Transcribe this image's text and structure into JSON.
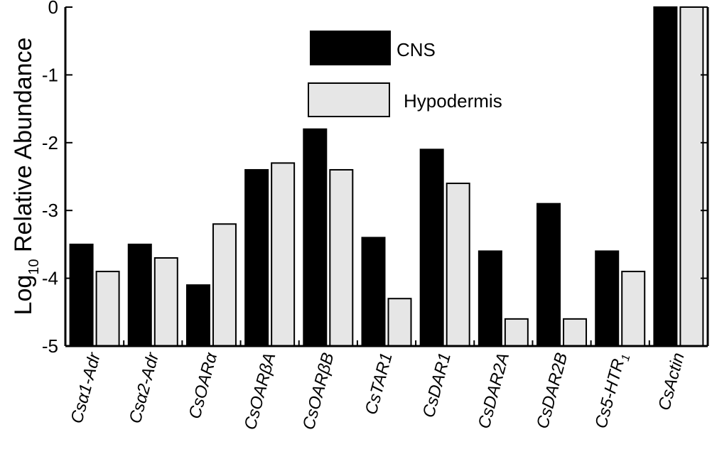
{
  "chart_data": {
    "type": "bar",
    "ylabel": "Log10 Relative Abundance",
    "ylabel_main": "Log",
    "ylabel_sub": "10",
    "ylabel_rest": " Relative Abundance",
    "ylim": [
      -5,
      0
    ],
    "yticks": [
      0,
      -1,
      -2,
      -3,
      -4,
      -5
    ],
    "ytick_labels": [
      "0",
      "-1",
      "-2",
      "-3",
      "-4",
      "-5"
    ],
    "grid": false,
    "legend_position": "top-center",
    "categories": [
      "Csα1-Adr",
      "Csα2-Adr",
      "CsOARα",
      "CsOARβA",
      "CsOARβB",
      "CsTAR1",
      "CsDAR1",
      "CsDAR2A",
      "CsDAR2B",
      "Cs5-HTR1",
      "CsActin"
    ],
    "category_display": [
      {
        "main": "Csα1-Adr",
        "sub": ""
      },
      {
        "main": "Csα2-Adr",
        "sub": ""
      },
      {
        "main": "CsOARα",
        "sub": ""
      },
      {
        "main": "CsOARβA",
        "sub": ""
      },
      {
        "main": "CsOARβB",
        "sub": ""
      },
      {
        "main": "CsTAR1",
        "sub": ""
      },
      {
        "main": "CsDAR1",
        "sub": ""
      },
      {
        "main": "CsDAR2A",
        "sub": ""
      },
      {
        "main": "CsDAR2B",
        "sub": ""
      },
      {
        "main": "Cs5-HTR",
        "sub": "1"
      },
      {
        "main": "CsActin",
        "sub": ""
      }
    ],
    "series": [
      {
        "name": "CNS",
        "color": "#000000",
        "values": [
          -3.5,
          -3.5,
          -4.1,
          -2.4,
          -1.8,
          -3.4,
          -2.1,
          -3.6,
          -2.9,
          -3.6,
          0.0
        ]
      },
      {
        "name": "Hypodermis",
        "color": "#e6e6e6",
        "values": [
          -3.9,
          -3.7,
          -3.2,
          -2.3,
          -2.4,
          -4.3,
          -2.6,
          -4.6,
          -4.6,
          -3.9,
          0.0
        ]
      }
    ]
  }
}
